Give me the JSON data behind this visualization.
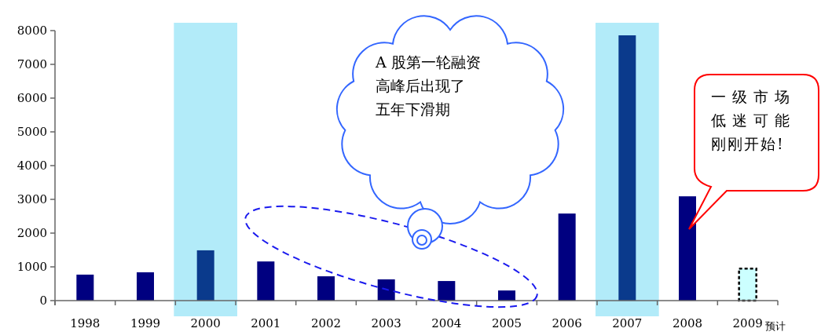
{
  "chart_data": {
    "type": "bar",
    "categories": [
      "1998",
      "1999",
      "2000",
      "2001",
      "2002",
      "2003",
      "2004",
      "2005",
      "2006",
      "2007",
      "2008",
      "2009"
    ],
    "series": [
      {
        "colors": [
          "#000080",
          "#000080",
          "#0a3a8c",
          "#000080",
          "#000080",
          "#000080",
          "#000080",
          "#000080",
          "#000080",
          "#0a3a8c",
          "#000080",
          null
        ],
        "values": [
          770,
          840,
          1490,
          1160,
          720,
          630,
          580,
          300,
          2580,
          7860,
          3090,
          null
        ]
      },
      {
        "color": "#ccffff",
        "line_style": "dashed",
        "values": [
          null,
          null,
          null,
          null,
          null,
          null,
          null,
          null,
          null,
          null,
          null,
          950
        ]
      }
    ],
    "ylim": [
      0,
      8000
    ],
    "yticks": [
      0,
      1000,
      2000,
      3000,
      4000,
      5000,
      6000,
      7000,
      8000
    ],
    "bands": [
      {
        "axis": "x",
        "from": "2000",
        "to": "2000",
        "color": "#9fe6f7"
      },
      {
        "axis": "x",
        "from": "2007",
        "to": "2007",
        "color": "#9fe6f7"
      }
    ],
    "annotations": [
      "A 股第一轮融资",
      "高峰后出现了",
      "五年下滑期",
      "一级市场",
      "低迷可能",
      "刚刚开始!",
      {
        "text": "预计",
        "x": "2009",
        "y": 0
      }
    ],
    "grid": false
  }
}
